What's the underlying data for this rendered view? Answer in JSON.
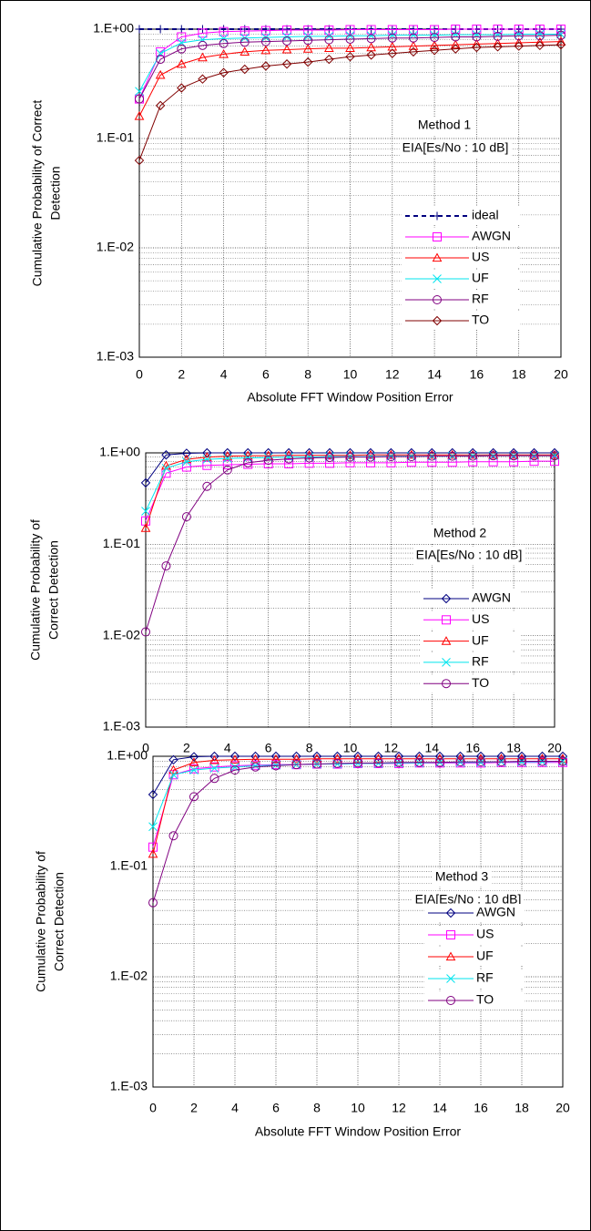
{
  "chart_data": [
    {
      "type": "line",
      "log_y": true,
      "grid": true,
      "minor_grid": true,
      "legend": "lower right",
      "annotations": [
        "Method 1",
        "EIA[Es/No : 10 dB]"
      ],
      "xlabel": "Absolute FFT Window Position Error",
      "ylabel": [
        "Cumulative Probability of Correct",
        "Detection"
      ],
      "x": [
        0,
        1,
        2,
        3,
        4,
        5,
        6,
        7,
        8,
        9,
        10,
        11,
        12,
        13,
        14,
        15,
        16,
        17,
        18,
        19,
        20
      ],
      "xlim": [
        0,
        20
      ],
      "xticks": [
        0,
        2,
        4,
        6,
        8,
        10,
        12,
        14,
        16,
        18,
        20
      ],
      "ylim": [
        0.001,
        1
      ],
      "yticks": [
        {
          "value": 0.001,
          "label": "1.E-03"
        },
        {
          "value": 0.01,
          "label": "1.E-02"
        },
        {
          "value": 0.1,
          "label": "1.E-01"
        },
        {
          "value": 1,
          "label": "1.E+00"
        }
      ],
      "series": [
        {
          "name": "ideal",
          "color": "#00007f",
          "marker": "plus",
          "dashed": true,
          "values": [
            1,
            1,
            1,
            1,
            1,
            1,
            1,
            1,
            1,
            1,
            1,
            1,
            1,
            1,
            1,
            1,
            1,
            1,
            1,
            1,
            1
          ]
        },
        {
          "name": "AWGN",
          "color": "#ff00ff",
          "marker": "square",
          "values": [
            0.23,
            0.62,
            0.85,
            0.92,
            0.95,
            0.96,
            0.97,
            0.98,
            0.98,
            0.98,
            0.99,
            0.99,
            0.99,
            0.99,
            0.99,
            1,
            1,
            1,
            1,
            1,
            1
          ]
        },
        {
          "name": "US",
          "color": "#ff0000",
          "marker": "triangle",
          "values": [
            0.16,
            0.38,
            0.48,
            0.55,
            0.59,
            0.62,
            0.64,
            0.65,
            0.66,
            0.67,
            0.67,
            0.68,
            0.69,
            0.7,
            0.71,
            0.72,
            0.73,
            0.74,
            0.75,
            0.76,
            0.77
          ]
        },
        {
          "name": "UF",
          "color": "#00e5ee",
          "marker": "x",
          "values": [
            0.27,
            0.6,
            0.75,
            0.8,
            0.82,
            0.83,
            0.84,
            0.85,
            0.86,
            0.86,
            0.87,
            0.87,
            0.88,
            0.88,
            0.88,
            0.89,
            0.89,
            0.89,
            0.9,
            0.9,
            0.9
          ]
        },
        {
          "name": "RF",
          "color": "#800080",
          "marker": "circle",
          "values": [
            0.23,
            0.53,
            0.66,
            0.71,
            0.74,
            0.76,
            0.77,
            0.78,
            0.79,
            0.8,
            0.81,
            0.82,
            0.83,
            0.83,
            0.84,
            0.85,
            0.85,
            0.86,
            0.87,
            0.87,
            0.88
          ]
        },
        {
          "name": "TO",
          "color": "#800000",
          "marker": "diamond",
          "values": [
            0.063,
            0.2,
            0.29,
            0.35,
            0.4,
            0.43,
            0.46,
            0.48,
            0.5,
            0.53,
            0.56,
            0.58,
            0.6,
            0.62,
            0.64,
            0.66,
            0.68,
            0.69,
            0.7,
            0.71,
            0.72
          ]
        }
      ]
    },
    {
      "type": "line",
      "log_y": true,
      "grid": true,
      "minor_grid": true,
      "legend": "lower right",
      "annotations": [
        "Method 2",
        "EIA[Es/No : 10 dB]"
      ],
      "xlabel": "Absolute FFT Window Position Error",
      "ylabel": [
        "Cumulative Probability of",
        "Correct Detection"
      ],
      "x": [
        0,
        1,
        2,
        3,
        4,
        5,
        6,
        7,
        8,
        9,
        10,
        11,
        12,
        13,
        14,
        15,
        16,
        17,
        18,
        19,
        20
      ],
      "xlim": [
        0,
        20
      ],
      "xticks": [
        0,
        2,
        4,
        6,
        8,
        10,
        12,
        14,
        16,
        18,
        20
      ],
      "ylim": [
        0.001,
        1
      ],
      "yticks": [
        {
          "value": 0.001,
          "label": "1.E-03"
        },
        {
          "value": 0.01,
          "label": "1.E-02"
        },
        {
          "value": 0.1,
          "label": "1.E-01"
        },
        {
          "value": 1,
          "label": "1.E+00"
        }
      ],
      "series": [
        {
          "name": "AWGN",
          "color": "#000080",
          "marker": "diamond",
          "values": [
            0.47,
            0.95,
            0.99,
            1,
            1,
            1,
            1,
            1,
            1,
            1,
            1,
            1,
            1,
            1,
            1,
            1,
            1,
            1,
            1,
            1,
            1
          ]
        },
        {
          "name": "US",
          "color": "#ff00ff",
          "marker": "square",
          "values": [
            0.18,
            0.6,
            0.7,
            0.73,
            0.74,
            0.75,
            0.76,
            0.76,
            0.77,
            0.77,
            0.78,
            0.78,
            0.78,
            0.79,
            0.79,
            0.79,
            0.8,
            0.8,
            0.8,
            0.81,
            0.81
          ]
        },
        {
          "name": "UF",
          "color": "#ff0000",
          "marker": "triangle",
          "values": [
            0.15,
            0.72,
            0.85,
            0.9,
            0.92,
            0.93,
            0.93,
            0.94,
            0.94,
            0.94,
            0.94,
            0.95,
            0.95,
            0.95,
            0.95,
            0.95,
            0.95,
            0.95,
            0.95,
            0.95,
            0.95
          ]
        },
        {
          "name": "RF",
          "color": "#00e5ee",
          "marker": "x",
          "values": [
            0.23,
            0.68,
            0.8,
            0.85,
            0.87,
            0.88,
            0.89,
            0.9,
            0.9,
            0.91,
            0.91,
            0.91,
            0.92,
            0.92,
            0.92,
            0.92,
            0.93,
            0.93,
            0.93,
            0.93,
            0.93
          ]
        },
        {
          "name": "TO",
          "color": "#800080",
          "marker": "circle",
          "values": [
            0.011,
            0.058,
            0.2,
            0.43,
            0.65,
            0.78,
            0.83,
            0.86,
            0.88,
            0.89,
            0.9,
            0.9,
            0.91,
            0.91,
            0.92,
            0.92,
            0.92,
            0.93,
            0.93,
            0.93,
            0.93
          ]
        }
      ]
    },
    {
      "type": "line",
      "log_y": true,
      "grid": true,
      "minor_grid": true,
      "legend": "lower right",
      "annotations": [
        "Method 3",
        "EIA[Es/No : 10 dB]"
      ],
      "xlabel": "Absolute FFT Window Position Error",
      "ylabel": [
        "Cumulative Probability of",
        "Correct Detection"
      ],
      "x": [
        0,
        1,
        2,
        3,
        4,
        5,
        6,
        7,
        8,
        9,
        10,
        11,
        12,
        13,
        14,
        15,
        16,
        17,
        18,
        19,
        20
      ],
      "xlim": [
        0,
        20
      ],
      "xticks": [
        0,
        2,
        4,
        6,
        8,
        10,
        12,
        14,
        16,
        18,
        20
      ],
      "ylim": [
        0.001,
        1
      ],
      "yticks": [
        {
          "value": 0.001,
          "label": "1.E-03"
        },
        {
          "value": 0.01,
          "label": "1.E-02"
        },
        {
          "value": 0.1,
          "label": "1.E-01"
        },
        {
          "value": 1,
          "label": "1.E+00"
        }
      ],
      "series": [
        {
          "name": "AWGN",
          "color": "#000080",
          "marker": "diamond",
          "values": [
            0.45,
            0.93,
            0.99,
            1,
            1,
            1,
            1,
            1,
            1,
            1,
            1,
            1,
            1,
            1,
            1,
            1,
            1,
            1,
            1,
            1,
            1
          ]
        },
        {
          "name": "US",
          "color": "#ff00ff",
          "marker": "square",
          "values": [
            0.15,
            0.68,
            0.77,
            0.8,
            0.82,
            0.83,
            0.84,
            0.84,
            0.85,
            0.85,
            0.86,
            0.86,
            0.86,
            0.87,
            0.87,
            0.87,
            0.87,
            0.88,
            0.88,
            0.88,
            0.88
          ]
        },
        {
          "name": "UF",
          "color": "#ff0000",
          "marker": "triangle",
          "values": [
            0.13,
            0.75,
            0.88,
            0.92,
            0.93,
            0.94,
            0.94,
            0.94,
            0.95,
            0.95,
            0.95,
            0.95,
            0.95,
            0.95,
            0.95,
            0.95,
            0.95,
            0.95,
            0.95,
            0.95,
            0.95
          ]
        },
        {
          "name": "RF",
          "color": "#00e5ee",
          "marker": "x",
          "values": [
            0.23,
            0.68,
            0.75,
            0.78,
            0.8,
            0.82,
            0.83,
            0.84,
            0.85,
            0.85,
            0.86,
            0.86,
            0.87,
            0.87,
            0.88,
            0.88,
            0.88,
            0.89,
            0.89,
            0.89,
            0.9
          ]
        },
        {
          "name": "TO",
          "color": "#800080",
          "marker": "circle",
          "values": [
            0.047,
            0.19,
            0.43,
            0.63,
            0.75,
            0.8,
            0.82,
            0.84,
            0.85,
            0.86,
            0.87,
            0.87,
            0.88,
            0.88,
            0.88,
            0.89,
            0.89,
            0.89,
            0.9,
            0.9,
            0.9
          ]
        }
      ]
    }
  ]
}
